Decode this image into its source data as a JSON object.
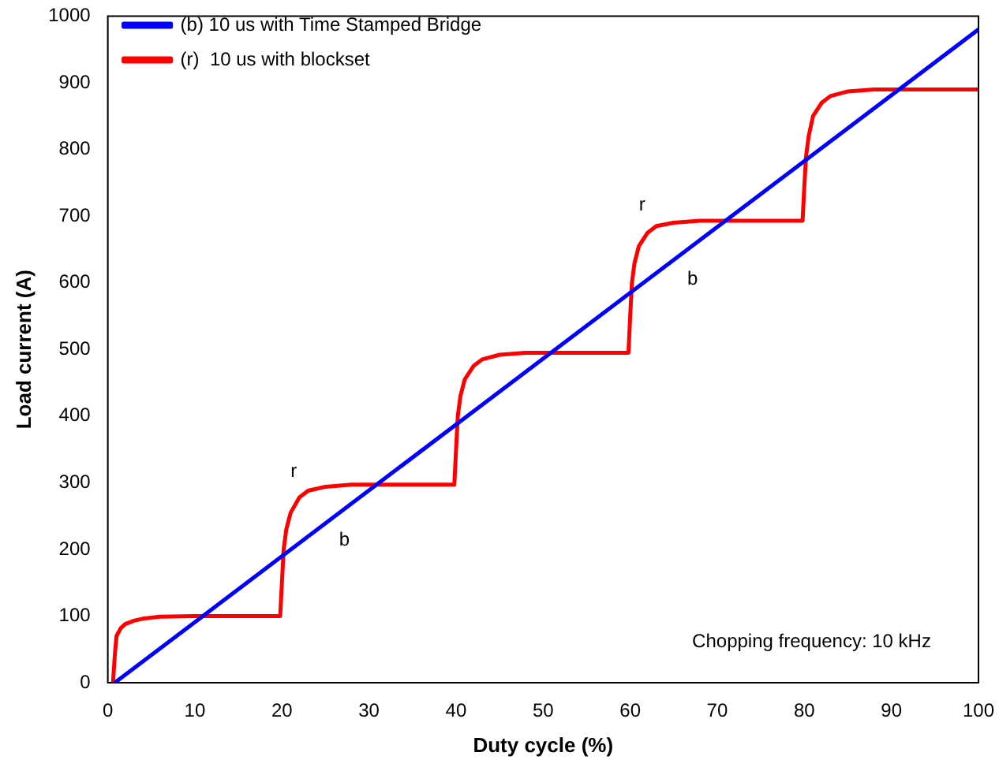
{
  "chart_data": {
    "type": "line",
    "xlabel": "Duty cycle (%)",
    "ylabel": "Load current (A)",
    "xlim": [
      0,
      100
    ],
    "ylim": [
      0,
      1000
    ],
    "xticks": [
      0,
      10,
      20,
      30,
      40,
      50,
      60,
      70,
      80,
      90,
      100
    ],
    "yticks": [
      0,
      100,
      200,
      300,
      400,
      500,
      600,
      700,
      800,
      900,
      1000
    ],
    "grid": false,
    "legend": "top left",
    "marker": "none",
    "line_style": "solid",
    "series": [
      {
        "name": "(b) 10 us with Time Stamped Bridge",
        "color": "#0000ff",
        "x": [
          0.8,
          100
        ],
        "values": [
          0,
          980
        ]
      },
      {
        "name": "(r)  10 us with blockset",
        "color": "#ff0000",
        "x": [
          0.6,
          0.8,
          1,
          1.5,
          2,
          3,
          4,
          6,
          10,
          15,
          19.8,
          20,
          20.2,
          20.5,
          21,
          22,
          23,
          25,
          28,
          35,
          39.8,
          40,
          40.2,
          40.5,
          41,
          42,
          43,
          45,
          48,
          55,
          59.8,
          60,
          60.2,
          60.5,
          61,
          62,
          63,
          65,
          68,
          75,
          79.8,
          80,
          80.2,
          80.5,
          81,
          82,
          83,
          85,
          88,
          100
        ],
        "values": [
          0,
          40,
          70,
          82,
          88,
          93,
          96,
          99,
          100,
          100,
          100,
          150,
          200,
          230,
          255,
          278,
          288,
          294,
          297,
          297,
          297,
          350,
          400,
          430,
          455,
          475,
          485,
          492,
          495,
          495,
          495,
          550,
          600,
          630,
          655,
          675,
          685,
          690,
          693,
          693,
          693,
          745,
          790,
          820,
          850,
          870,
          880,
          887,
          890,
          890
        ]
      }
    ],
    "annotations": [
      {
        "text": "r",
        "x": 21,
        "y": 255
      },
      {
        "text": "b",
        "x": 25,
        "y": 237
      },
      {
        "text": "r",
        "x": 61,
        "y": 655
      },
      {
        "text": "b",
        "x": 65,
        "y": 629
      },
      "Chopping frequency: 10 kHz"
    ]
  }
}
